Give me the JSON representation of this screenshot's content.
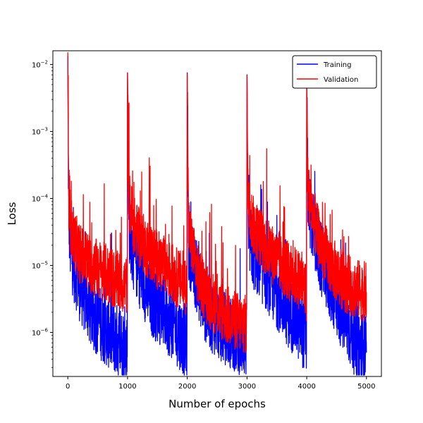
{
  "chart_data": {
    "type": "line",
    "xlabel": "Number of epochs",
    "ylabel": "Loss",
    "xlim": [
      -250,
      5250
    ],
    "ylim": [
      2.2e-07,
      0.016
    ],
    "y_scale": "log",
    "x_ticks": [
      0,
      1000,
      2000,
      3000,
      4000,
      5000
    ],
    "x_tick_labels": [
      "0",
      "1000",
      "2000",
      "3000",
      "4000",
      "5000"
    ],
    "y_ticks": [
      1e-06,
      1e-05,
      0.0001,
      0.001,
      0.01
    ],
    "y_tick_labels": [
      "10",
      "10",
      "10",
      "10",
      "10"
    ],
    "y_tick_exponents": [
      "−6",
      "−5",
      "−4",
      "−3",
      "−2"
    ],
    "grid": false,
    "legend_position": "top-right",
    "series": [
      {
        "name": "Training",
        "color": "#0000ff",
        "points": [
          [
            0,
            0.009
          ],
          [
            15,
            6e-05
          ],
          [
            40,
            2e-05
          ],
          [
            100,
            1e-05
          ],
          [
            200,
            5e-06
          ],
          [
            400,
            2e-06
          ],
          [
            600,
            1.2e-06
          ],
          [
            800,
            8e-07
          ],
          [
            995,
            5.5e-07
          ],
          [
            1000,
            0.0075
          ],
          [
            1020,
            4e-05
          ],
          [
            1100,
            1.5e-05
          ],
          [
            1200,
            8e-06
          ],
          [
            1400,
            3e-06
          ],
          [
            1600,
            2e-06
          ],
          [
            1800,
            1.2e-06
          ],
          [
            1995,
            7e-07
          ],
          [
            2000,
            0.0075
          ],
          [
            2020,
            2e-05
          ],
          [
            2100,
            1e-05
          ],
          [
            2200,
            5e-06
          ],
          [
            2300,
            2.5e-06
          ],
          [
            2400,
            1.8e-06
          ],
          [
            2600,
            1.2e-06
          ],
          [
            2800,
            9e-07
          ],
          [
            2995,
            7e-07
          ],
          [
            3000,
            0.007
          ],
          [
            3020,
            3e-05
          ],
          [
            3100,
            1.5e-05
          ],
          [
            3300,
            8e-06
          ],
          [
            3500,
            4e-06
          ],
          [
            3700,
            2e-06
          ],
          [
            3900,
            1.2e-06
          ],
          [
            3995,
            8e-07
          ],
          [
            4000,
            0.005
          ],
          [
            4020,
            8e-05
          ],
          [
            4100,
            4e-05
          ],
          [
            4200,
            1.5e-05
          ],
          [
            4400,
            5e-06
          ],
          [
            4600,
            1.8e-06
          ],
          [
            4800,
            8e-07
          ],
          [
            5000,
            5e-07
          ]
        ]
      },
      {
        "name": "Validation",
        "color": "#ff0000",
        "points": [
          [
            0,
            0.0095
          ],
          [
            15,
            8e-05
          ],
          [
            50,
            4e-05
          ],
          [
            100,
            2.5e-05
          ],
          [
            200,
            1.5e-05
          ],
          [
            400,
            1e-05
          ],
          [
            600,
            8e-06
          ],
          [
            800,
            6e-06
          ],
          [
            995,
            5e-06
          ],
          [
            1000,
            0.0075
          ],
          [
            1020,
            0.0001
          ],
          [
            1100,
            4e-05
          ],
          [
            1200,
            2.5e-05
          ],
          [
            1400,
            1.5e-05
          ],
          [
            1600,
            1e-05
          ],
          [
            1800,
            7e-06
          ],
          [
            1995,
            5e-06
          ],
          [
            2000,
            0.0072
          ],
          [
            2020,
            4e-05
          ],
          [
            2100,
            1.5e-05
          ],
          [
            2200,
            6e-06
          ],
          [
            2300,
            4e-06
          ],
          [
            2400,
            3e-06
          ],
          [
            2600,
            2e-06
          ],
          [
            2800,
            1.5e-06
          ],
          [
            2995,
            1.3e-06
          ],
          [
            3000,
            0.0068
          ],
          [
            3020,
            8e-05
          ],
          [
            3100,
            4e-05
          ],
          [
            3300,
            2e-05
          ],
          [
            3500,
            1.2e-05
          ],
          [
            3700,
            8e-06
          ],
          [
            3900,
            6e-06
          ],
          [
            3995,
            4e-06
          ],
          [
            4000,
            0.0052
          ],
          [
            4020,
            0.00012
          ],
          [
            4100,
            6e-05
          ],
          [
            4200,
            2.5e-05
          ],
          [
            4400,
            1e-05
          ],
          [
            4600,
            6e-06
          ],
          [
            4800,
            4.5e-06
          ],
          [
            5000,
            4e-06
          ]
        ]
      }
    ]
  }
}
